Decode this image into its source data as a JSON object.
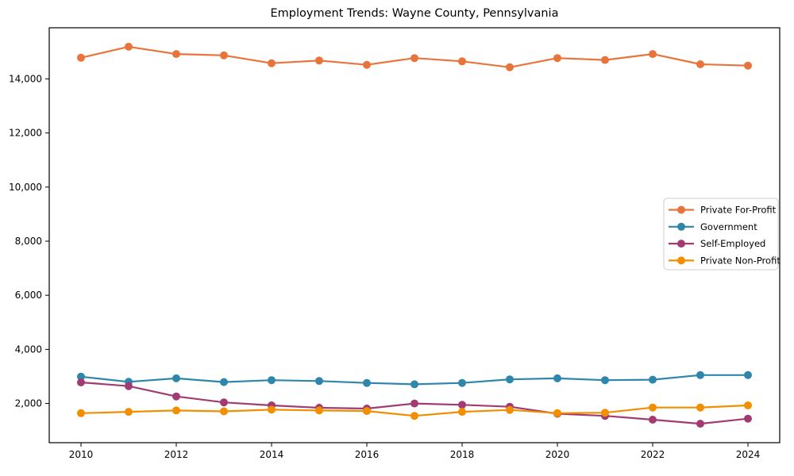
{
  "figure": {
    "background": "#ffffff",
    "axis_color": "#000000"
  },
  "chart_data": {
    "type": "line",
    "title": "Employment Trends: Wayne County, Pennsylvania",
    "x": [
      2010,
      2011,
      2012,
      2013,
      2014,
      2015,
      2016,
      2017,
      2018,
      2019,
      2020,
      2021,
      2022,
      2023,
      2024
    ],
    "series": [
      {
        "name": "Private For-Profit",
        "color": "#E8743B",
        "values": [
          14780,
          15190,
          14920,
          14870,
          14580,
          14680,
          14520,
          14770,
          14650,
          14430,
          14770,
          14700,
          14920,
          14540,
          14490
        ]
      },
      {
        "name": "Government",
        "color": "#2E86AB",
        "values": [
          2990,
          2800,
          2930,
          2790,
          2860,
          2830,
          2760,
          2710,
          2760,
          2890,
          2930,
          2860,
          2880,
          3050,
          3050
        ]
      },
      {
        "name": "Self-Employed",
        "color": "#A23B72",
        "values": [
          2780,
          2640,
          2260,
          2040,
          1930,
          1840,
          1810,
          2000,
          1950,
          1880,
          1620,
          1540,
          1400,
          1250,
          1440
        ]
      },
      {
        "name": "Private Non-Profit",
        "color": "#F18F01",
        "values": [
          1640,
          1690,
          1740,
          1710,
          1770,
          1740,
          1720,
          1540,
          1690,
          1760,
          1640,
          1660,
          1850,
          1850,
          1930
        ]
      }
    ],
    "x_ticks": [
      2010,
      2012,
      2014,
      2016,
      2018,
      2020,
      2022,
      2024
    ],
    "x_tick_labels": [
      "2010",
      "2012",
      "2014",
      "2016",
      "2018",
      "2020",
      "2022",
      "2024"
    ],
    "y_ticks": [
      2000,
      4000,
      6000,
      8000,
      10000,
      12000,
      14000
    ],
    "y_tick_labels": [
      "2,000",
      "4,000",
      "6,000",
      "8,000",
      "10,000",
      "12,000",
      "14,000"
    ],
    "xlim": [
      2009.333,
      2024.667
    ],
    "ylim": [
      550,
      15890
    ],
    "grid": false,
    "legend": {
      "position": "center right",
      "background": "#ffffff",
      "border_color": "#cccccc"
    },
    "marker": "circle",
    "line_width": 2.2,
    "marker_radius": 5
  }
}
